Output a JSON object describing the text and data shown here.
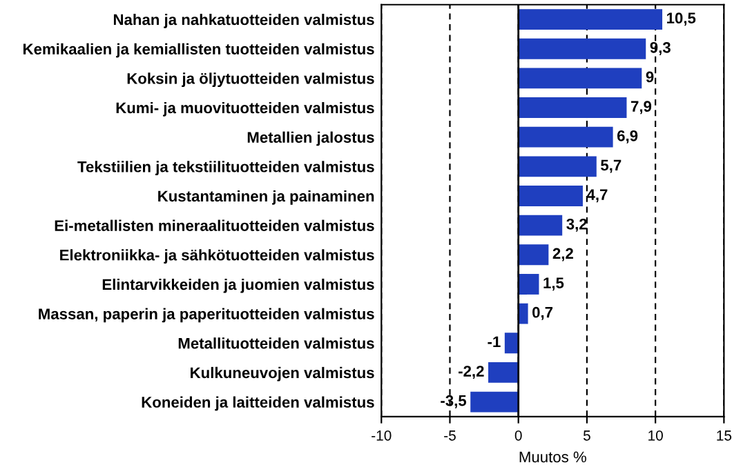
{
  "chart_data": {
    "type": "bar",
    "orientation": "horizontal",
    "xlabel": "Muutos %",
    "categories": [
      "Nahan ja nahkatuotteiden valmistus",
      "Kemikaalien ja kemiallisten tuotteiden valmistus",
      "Koksin ja öljytuotteiden valmistus",
      "Kumi- ja muovituotteiden valmistus",
      "Metallien jalostus",
      "Tekstiilien ja tekstiilituotteiden valmistus",
      "Kustantaminen ja painaminen",
      "Ei-metallisten mineraalituotteiden valmistus",
      "Elektroniikka- ja sähkötuotteiden valmistus",
      "Elintarvikkeiden ja juomien valmistus",
      "Massan, paperin ja paperituotteiden valmistus",
      "Metallituotteiden valmistus",
      "Kulkuneuvojen valmistus",
      "Koneiden ja laitteiden valmistus"
    ],
    "values": [
      10.5,
      9.3,
      9,
      7.9,
      6.9,
      5.7,
      4.7,
      3.2,
      2.2,
      1.5,
      0.7,
      -1,
      -2.2,
      -3.5
    ],
    "value_labels": [
      "10,5",
      "9,3",
      "9",
      "7,9",
      "6,9",
      "5,7",
      "4,7",
      "3,2",
      "2,2",
      "1,5",
      "0,7",
      "-1",
      "-2,2",
      "-3,5"
    ],
    "color": "#1f3fbf",
    "xlim": [
      -10,
      15
    ],
    "xticks": [
      -10,
      -5,
      0,
      5,
      10,
      15
    ],
    "grid": "x",
    "ref_lines": [
      {
        "axis": "x",
        "value": 0,
        "label": null,
        "line_style": "solid",
        "color": "#000000"
      }
    ]
  }
}
